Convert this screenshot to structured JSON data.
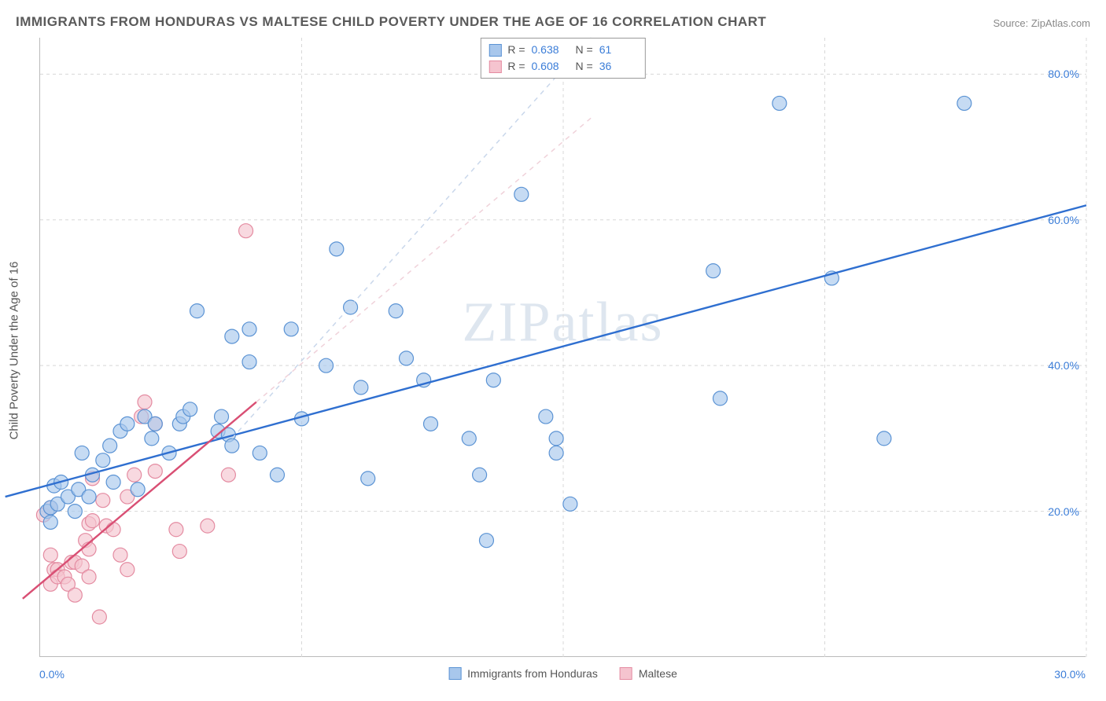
{
  "title": "IMMIGRANTS FROM HONDURAS VS MALTESE CHILD POVERTY UNDER THE AGE OF 16 CORRELATION CHART",
  "source": "Source: ZipAtlas.com",
  "ylabel": "Child Poverty Under the Age of 16",
  "watermark": "ZIPatlas",
  "chart": {
    "type": "scatter",
    "xlim": [
      0,
      30
    ],
    "ylim": [
      0,
      85
    ],
    "xticks": [
      0,
      30
    ],
    "xtick_labels": [
      "0.0%",
      "30.0%"
    ],
    "yticks": [
      20,
      40,
      60,
      80
    ],
    "ytick_labels": [
      "20.0%",
      "40.0%",
      "60.0%",
      "80.0%"
    ],
    "x_gridlines": [
      0,
      7.5,
      15,
      22.5,
      30
    ],
    "y_gridlines": [
      20,
      40,
      60,
      80
    ],
    "background_color": "#ffffff",
    "grid_color": "#d8d8d8",
    "axis_color": "#bbbbbb",
    "watermark_color": "#8aa8c8",
    "marker_radius": 9,
    "marker_stroke_width": 1.2,
    "trend_line_width": 2.4,
    "series": [
      {
        "name": "Immigrants from Honduras",
        "fill": "#a8c7ec",
        "stroke": "#5b93d4",
        "line_color": "#2f6fd0",
        "R": "0.638",
        "N": "61",
        "trend": {
          "x1": -1,
          "y1": 22,
          "x2": 30,
          "y2": 62
        },
        "trend_dashed": {
          "x1": 5.5,
          "y1": 30,
          "x2": 15.8,
          "y2": 85
        },
        "trend_dashed_color": "#c9d7eb",
        "points": [
          [
            0.2,
            20
          ],
          [
            0.3,
            20.5
          ],
          [
            0.5,
            21
          ],
          [
            0.4,
            23.5
          ],
          [
            0.3,
            18.5
          ],
          [
            0.6,
            24
          ],
          [
            0.8,
            22
          ],
          [
            1.0,
            20
          ],
          [
            1.2,
            28
          ],
          [
            1.1,
            23
          ],
          [
            1.5,
            25
          ],
          [
            1.4,
            22
          ],
          [
            1.8,
            27
          ],
          [
            2.0,
            29
          ],
          [
            2.1,
            24
          ],
          [
            2.3,
            31
          ],
          [
            2.5,
            32
          ],
          [
            2.8,
            23
          ],
          [
            3.0,
            33
          ],
          [
            3.2,
            30
          ],
          [
            3.3,
            32
          ],
          [
            3.7,
            28
          ],
          [
            4.0,
            32
          ],
          [
            4.1,
            33
          ],
          [
            4.3,
            34
          ],
          [
            4.5,
            47.5
          ],
          [
            5.1,
            31
          ],
          [
            5.2,
            33
          ],
          [
            5.4,
            30.5
          ],
          [
            5.5,
            29
          ],
          [
            5.5,
            44
          ],
          [
            6.0,
            40.5
          ],
          [
            6.0,
            45
          ],
          [
            6.3,
            28
          ],
          [
            6.8,
            25
          ],
          [
            7.2,
            45
          ],
          [
            7.5,
            32.7
          ],
          [
            8.2,
            40
          ],
          [
            8.5,
            56
          ],
          [
            8.9,
            48
          ],
          [
            9.2,
            37
          ],
          [
            9.4,
            24.5
          ],
          [
            10.2,
            47.5
          ],
          [
            10.5,
            41
          ],
          [
            11.0,
            38
          ],
          [
            11.2,
            32
          ],
          [
            12.3,
            30
          ],
          [
            12.6,
            25
          ],
          [
            13.0,
            38
          ],
          [
            13.8,
            63.5
          ],
          [
            12.8,
            16
          ],
          [
            14.5,
            33
          ],
          [
            14.8,
            30
          ],
          [
            14.8,
            28
          ],
          [
            15.2,
            21
          ],
          [
            19.3,
            53
          ],
          [
            19.5,
            35.5
          ],
          [
            21.2,
            76
          ],
          [
            22.7,
            52
          ],
          [
            24.2,
            30
          ],
          [
            26.5,
            76
          ]
        ]
      },
      {
        "name": "Maltese",
        "fill": "#f5c4cf",
        "stroke": "#e48ba1",
        "line_color": "#d94f74",
        "R": "0.608",
        "N": "36",
        "trend": {
          "x1": -0.5,
          "y1": 8,
          "x2": 6.2,
          "y2": 35
        },
        "trend_dashed": {
          "x1": 6.2,
          "y1": 35,
          "x2": 15.8,
          "y2": 74
        },
        "trend_dashed_color": "#f0d2da",
        "points": [
          [
            0.1,
            19.5
          ],
          [
            0.3,
            14
          ],
          [
            0.3,
            20.5
          ],
          [
            0.4,
            12
          ],
          [
            0.3,
            10
          ],
          [
            0.5,
            12
          ],
          [
            0.5,
            11
          ],
          [
            0.7,
            11
          ],
          [
            0.8,
            10
          ],
          [
            0.9,
            13
          ],
          [
            1.0,
            13
          ],
          [
            1.0,
            8.5
          ],
          [
            1.2,
            12.5
          ],
          [
            1.3,
            16
          ],
          [
            1.4,
            14.8
          ],
          [
            1.4,
            18.3
          ],
          [
            1.4,
            11
          ],
          [
            1.5,
            18.7
          ],
          [
            1.7,
            5.5
          ],
          [
            1.8,
            21.5
          ],
          [
            1.9,
            18
          ],
          [
            1.5,
            24.5
          ],
          [
            2.1,
            17.5
          ],
          [
            2.3,
            14
          ],
          [
            2.5,
            12
          ],
          [
            2.5,
            22
          ],
          [
            2.7,
            25
          ],
          [
            2.9,
            33
          ],
          [
            3.0,
            35
          ],
          [
            3.3,
            25.5
          ],
          [
            3.3,
            32
          ],
          [
            3.9,
            17.5
          ],
          [
            4.0,
            14.5
          ],
          [
            4.8,
            18
          ],
          [
            5.4,
            25
          ],
          [
            5.9,
            58.5
          ]
        ]
      }
    ]
  },
  "legend_bottom": [
    {
      "label": "Immigrants from Honduras",
      "fill": "#a8c7ec",
      "stroke": "#5b93d4"
    },
    {
      "label": "Maltese",
      "fill": "#f5c4cf",
      "stroke": "#e48ba1"
    }
  ]
}
